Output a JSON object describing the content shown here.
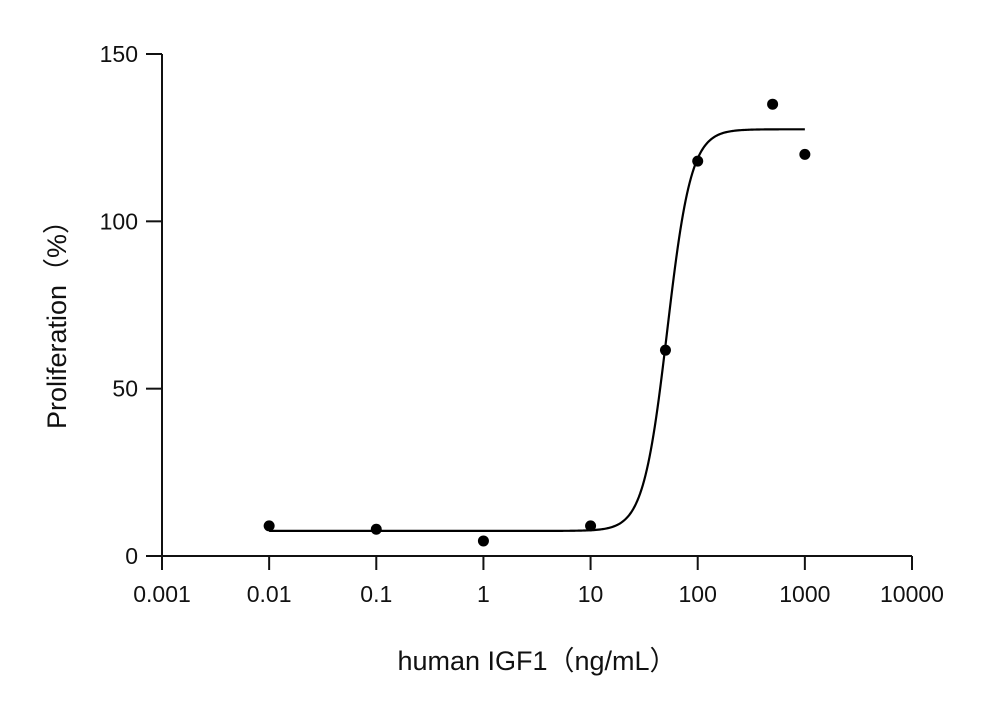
{
  "chart_data": {
    "type": "scatter",
    "title": "",
    "xlabel": "human IGF1（ng/mL）",
    "ylabel": "Proliferation（%）",
    "x_scale": "log",
    "xlim": [
      0.001,
      10000
    ],
    "ylim": [
      0,
      150
    ],
    "x_ticks": [
      0.001,
      0.01,
      0.1,
      1,
      10,
      100,
      1000,
      10000
    ],
    "x_tick_labels": [
      "0.001",
      "0.01",
      "0.1",
      "1",
      "10",
      "100",
      "1000",
      "10000"
    ],
    "y_ticks": [
      0,
      50,
      100,
      150
    ],
    "y_tick_labels": [
      "0",
      "50",
      "100",
      "150"
    ],
    "grid": false,
    "legend": "none",
    "points": [
      {
        "x": 0.01,
        "y": 9
      },
      {
        "x": 0.1,
        "y": 8
      },
      {
        "x": 1,
        "y": 4.5
      },
      {
        "x": 10,
        "y": 9
      },
      {
        "x": 50,
        "y": 61.5
      },
      {
        "x": 100,
        "y": 118
      },
      {
        "x": 500,
        "y": 135
      },
      {
        "x": 1000,
        "y": 120
      }
    ],
    "fit_curve": {
      "type": "sigmoid",
      "bottom": 7.5,
      "top": 127.5,
      "ec50": 52,
      "hill_slope": 3.9,
      "x_range": [
        0.01,
        1000
      ]
    },
    "colors": {
      "axis": "#111111",
      "points": "#000000",
      "curve": "#000000"
    }
  }
}
